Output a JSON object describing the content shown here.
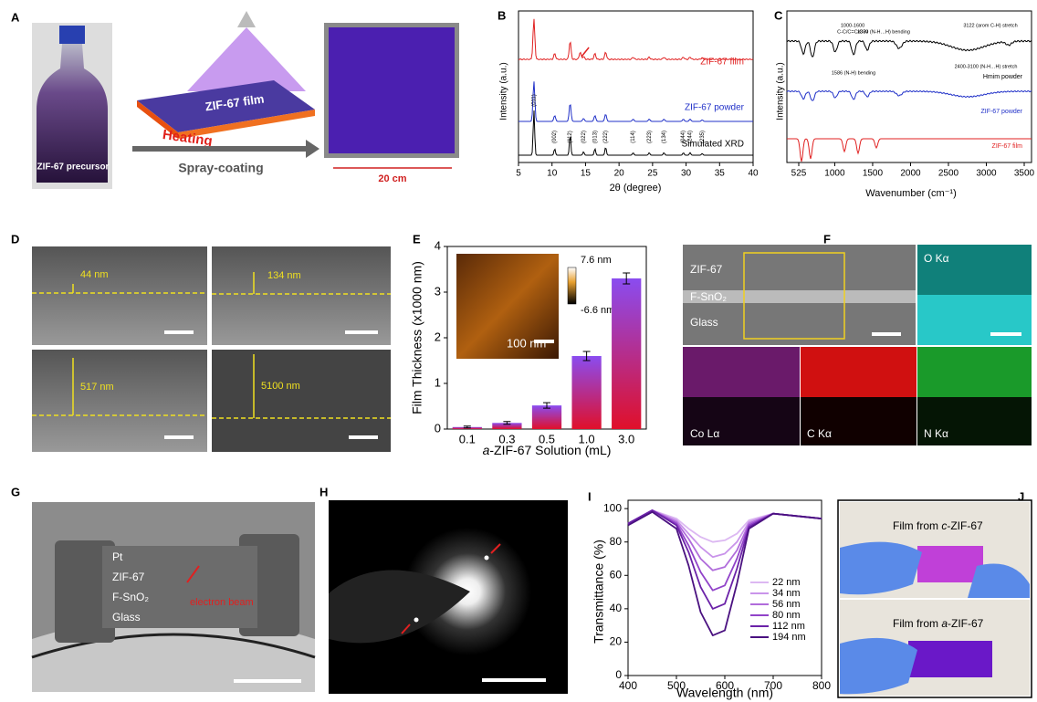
{
  "panel_labels": [
    "A",
    "B",
    "C",
    "D",
    "E",
    "F",
    "G",
    "H",
    "I",
    "J"
  ],
  "panel_a": {
    "precursor": "ZIF-67 precursor",
    "film": "ZIF-67 film",
    "heating": "Heating",
    "process": "Spray-coating",
    "size": "20 cm"
  },
  "panel_d": {
    "thicknesses": [
      "44 nm",
      "134 nm",
      "517 nm",
      "5100 nm"
    ]
  },
  "panel_f": {
    "layers": [
      "ZIF-67",
      "F-SnO₂",
      "Glass"
    ],
    "maps": [
      "O Kα",
      "Co Lα",
      "C Kα",
      "N Kα"
    ]
  },
  "panel_g": {
    "layers": [
      "Pt",
      "ZIF-67",
      "F-SnO₂",
      "Glass"
    ],
    "beam": "electron beam"
  },
  "panel_j": {
    "top_prefix": "Film from ",
    "top_italic": "c",
    "top_suffix": "-ZIF-67",
    "bottom_prefix": "Film from ",
    "bottom_italic": "a",
    "bottom_suffix": "-ZIF-67"
  },
  "chart_data": [
    {
      "type": "xrd",
      "xlabel": "2θ (degree)",
      "ylabel": "Intensity (a.u.)",
      "xlim": [
        5,
        40
      ],
      "xticks": [
        5,
        10,
        15,
        20,
        25,
        30,
        35,
        40
      ],
      "series_labels": [
        "ZIF-67 film",
        "ZIF-67 powder",
        "Simulated XRD"
      ],
      "peak_labels": [
        "(011)",
        "(002)",
        "(112)",
        "(022)",
        "(013)",
        "(222)",
        "(114)",
        "(223)",
        "(134)",
        "(044)",
        "(244)",
        "(235)"
      ]
    },
    {
      "type": "ftir",
      "xlabel": "Wavenumber (cm⁻¹)",
      "ylabel": "Intensity (a.u.)",
      "xlim": [
        525,
        3500
      ],
      "xticks": [
        525,
        1000,
        1500,
        2000,
        2500,
        3000,
        3500
      ],
      "series_labels": [
        "Hmim powder",
        "ZIF-67 powder",
        "ZIF-67 film"
      ],
      "annotations": [
        "1000-1600",
        "C-C/C=C/C-N",
        "1850 (N-H…H) bending",
        "1586 (N-H) bending",
        "3122 (arom C-H) stretch",
        "2400-3100 (N-H…H) stretch"
      ]
    },
    {
      "type": "bar",
      "xlabel_italic": "a",
      "xlabel": "-ZIF-67 Solution (mL)",
      "ylabel": "Film Thickness (x1000 nm)",
      "categories": [
        "0.1",
        "0.3",
        "0.5",
        "1.0",
        "3.0"
      ],
      "values": [
        0.044,
        0.134,
        0.517,
        1.6,
        3.3
      ],
      "errors": [
        0.02,
        0.03,
        0.06,
        0.1,
        0.12
      ],
      "ylim": [
        0,
        4
      ],
      "yticks": [
        0,
        1,
        2,
        3,
        4
      ],
      "inset": {
        "colorbar_max": "7.6 nm",
        "colorbar_min": "-6.6 nm",
        "scale": "100 nm"
      }
    },
    {
      "type": "line",
      "xlabel": "Wavelength (nm)",
      "ylabel": "Transmittance (%)",
      "x": [
        400,
        450,
        500,
        525,
        550,
        575,
        600,
        625,
        650,
        700,
        800
      ],
      "xlim": [
        400,
        800
      ],
      "xticks": [
        400,
        500,
        600,
        700,
        800
      ],
      "ylim": [
        0,
        105
      ],
      "yticks": [
        0,
        20,
        40,
        60,
        80,
        100
      ],
      "series": [
        {
          "name": "22 nm",
          "color": "#dcb8f2",
          "values": [
            91,
            99,
            94,
            88,
            83,
            80,
            81,
            85,
            93,
            97,
            94
          ]
        },
        {
          "name": "34 nm",
          "color": "#c994ea",
          "values": [
            91,
            99,
            93,
            85,
            77,
            71,
            73,
            80,
            92,
            97,
            94
          ]
        },
        {
          "name": "56 nm",
          "color": "#b06cdb",
          "values": [
            91,
            99,
            92,
            82,
            70,
            63,
            65,
            75,
            91,
            97,
            94
          ]
        },
        {
          "name": "80 nm",
          "color": "#9143c9",
          "values": [
            91,
            99,
            91,
            78,
            62,
            51,
            54,
            70,
            90,
            97,
            94
          ]
        },
        {
          "name": "112 nm",
          "color": "#6b22a8",
          "values": [
            91,
            99,
            90,
            74,
            53,
            40,
            43,
            64,
            89,
            97,
            94
          ]
        },
        {
          "name": "194 nm",
          "color": "#4a1180",
          "values": [
            90,
            98,
            88,
            66,
            38,
            24,
            27,
            55,
            88,
            97,
            94
          ]
        }
      ]
    }
  ]
}
